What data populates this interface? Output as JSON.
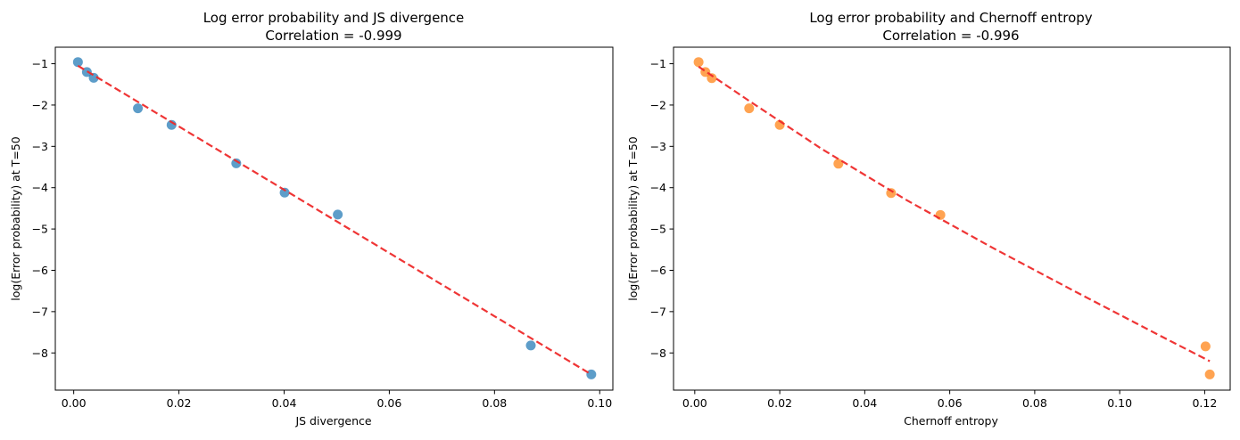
{
  "chart_data": [
    {
      "type": "scatter",
      "title": "Log error probability and JS divergence",
      "subtitle": "Correlation = -0.999",
      "xlabel": "JS divergence",
      "ylabel": "log(Error probability) at T=50",
      "xlim": [
        -0.0035,
        0.1025
      ],
      "ylim": [
        -8.9,
        -0.6
      ],
      "xticks": [
        0.0,
        0.02,
        0.04,
        0.06,
        0.08,
        0.1
      ],
      "xtick_labels": [
        "0.00",
        "0.02",
        "0.04",
        "0.06",
        "0.08",
        "0.10"
      ],
      "yticks": [
        -8,
        -7,
        -6,
        -5,
        -4,
        -3,
        -2,
        -1
      ],
      "ytick_labels": [
        "−8",
        "−7",
        "−6",
        "−5",
        "−4",
        "−3",
        "−2",
        "−1"
      ],
      "grid": false,
      "series": [
        {
          "kind": "points",
          "color": "#1f77b4",
          "x": [
            0.0008,
            0.0025,
            0.0038,
            0.0122,
            0.0186,
            0.0309,
            0.0401,
            0.0502,
            0.0869,
            0.0984
          ],
          "y": [
            -0.96,
            -1.2,
            -1.34,
            -2.08,
            -2.48,
            -3.41,
            -4.12,
            -4.65,
            -7.82,
            -8.52
          ]
        },
        {
          "kind": "fit-line",
          "color": "#ee2a2a",
          "dashed": true,
          "x": [
            0.0008,
            0.0984
          ],
          "y": [
            -1.05,
            -8.52
          ]
        }
      ]
    },
    {
      "type": "scatter",
      "title": "Log error probability and Chernoff entropy",
      "subtitle": "Correlation = -0.996",
      "xlabel": "Chernoff entropy",
      "ylabel": "log(Error probability) at T=50",
      "xlim": [
        -0.005,
        0.126
      ],
      "ylim": [
        -8.9,
        -0.6
      ],
      "xticks": [
        0.0,
        0.02,
        0.04,
        0.06,
        0.08,
        0.1,
        0.12
      ],
      "xtick_labels": [
        "0.00",
        "0.02",
        "0.04",
        "0.06",
        "0.08",
        "0.10",
        "0.12"
      ],
      "yticks": [
        -8,
        -7,
        -6,
        -5,
        -4,
        -3,
        -2,
        -1
      ],
      "ytick_labels": [
        "−8",
        "−7",
        "−6",
        "−5",
        "−4",
        "−3",
        "−2",
        "−1"
      ],
      "grid": false,
      "series": [
        {
          "kind": "points",
          "color": "#ff7f0e",
          "x": [
            0.0009,
            0.0025,
            0.004,
            0.0128,
            0.02,
            0.0338,
            0.0462,
            0.0578,
            0.1202,
            0.1212
          ],
          "y": [
            -0.96,
            -1.2,
            -1.35,
            -2.08,
            -2.48,
            -3.42,
            -4.13,
            -4.66,
            -7.84,
            -8.52
          ]
        },
        {
          "kind": "fit-curve",
          "color": "#ee2a2a",
          "dashed": true,
          "x": [
            0.0009,
            0.0128,
            0.03,
            0.05,
            0.07,
            0.09,
            0.11,
            0.1212
          ],
          "y": [
            -1.07,
            -1.9,
            -3.07,
            -4.31,
            -5.45,
            -6.54,
            -7.61,
            -8.2
          ]
        }
      ]
    }
  ]
}
